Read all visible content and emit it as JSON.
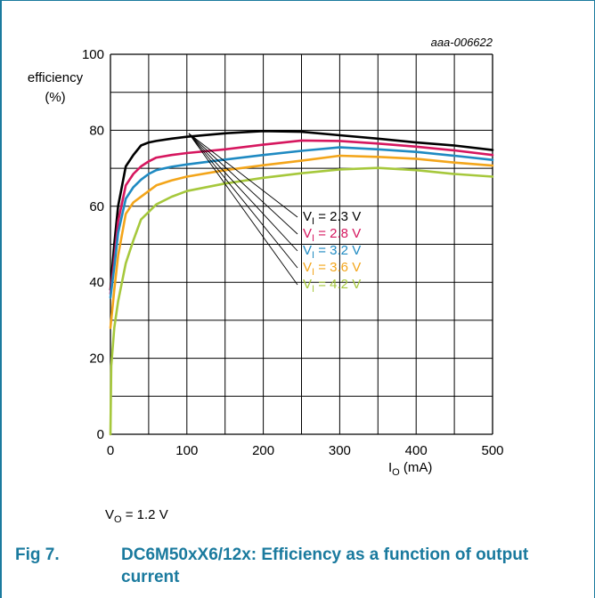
{
  "figure": {
    "number": "Fig 7.",
    "caption": "DC6M50xX6/12x: Efficiency as a function of output current",
    "code": "aaa-006622",
    "condition": {
      "main": "V",
      "sub": "O",
      "rest": " = 1.2 V"
    }
  },
  "chart_data": {
    "type": "line",
    "title": "",
    "ylabel": "efficiency (%)",
    "ylabel_lines": [
      "efficiency",
      "(%)"
    ],
    "xlabel": {
      "main": "I",
      "sub": "O",
      "rest": " (mA)"
    },
    "xlim": [
      0,
      500
    ],
    "ylim": [
      0,
      100
    ],
    "xticks": [
      0,
      100,
      200,
      300,
      400,
      500
    ],
    "yticks": [
      0,
      20,
      40,
      60,
      80,
      100
    ],
    "grid": true,
    "legend_position": "center-right, with leader lines",
    "series": [
      {
        "name": "VI = 2.3 V",
        "label": {
          "main": "V",
          "sub": "I",
          "rest": " =  2.3 V"
        },
        "color": "#000000",
        "x": [
          0,
          5,
          10,
          20,
          30,
          40,
          50,
          60,
          80,
          100,
          150,
          200,
          250,
          300,
          350,
          400,
          450,
          500
        ],
        "y": [
          38,
          50,
          60,
          70.5,
          73.5,
          76,
          76.8,
          77.2,
          77.8,
          78.3,
          79.2,
          79.8,
          79.6,
          78.7,
          77.8,
          76.8,
          76,
          74.8
        ]
      },
      {
        "name": "VI = 2.8 V",
        "label": {
          "main": "V",
          "sub": "I",
          "rest": " =  2.8 V"
        },
        "color": "#d6175f",
        "x": [
          0,
          5,
          10,
          20,
          30,
          40,
          50,
          60,
          80,
          100,
          150,
          200,
          250,
          300,
          350,
          400,
          450,
          500
        ],
        "y": [
          37,
          46,
          56,
          65.5,
          68.5,
          70.5,
          71.8,
          72.8,
          73.5,
          74,
          75,
          76.2,
          77.3,
          77.2,
          76.5,
          75.7,
          74.7,
          73.5
        ]
      },
      {
        "name": "VI = 3.2 V",
        "label": {
          "main": "V",
          "sub": "I",
          "rest": " =  3.2 V"
        },
        "color": "#1f8ac2",
        "x": [
          0,
          5,
          10,
          20,
          30,
          40,
          50,
          60,
          80,
          100,
          150,
          200,
          250,
          300,
          350,
          400,
          450,
          500
        ],
        "y": [
          36,
          44,
          53,
          62,
          65,
          67,
          68.5,
          69.5,
          70.4,
          71,
          72.3,
          73.5,
          74.6,
          75.5,
          75,
          74.3,
          73.3,
          72.2
        ]
      },
      {
        "name": "VI = 3.6 V",
        "label": {
          "main": "V",
          "sub": "I",
          "rest": " =  3.6 V"
        },
        "color": "#f3a51a",
        "x": [
          0,
          5,
          10,
          20,
          30,
          40,
          50,
          60,
          80,
          100,
          150,
          200,
          250,
          300,
          350,
          400,
          450,
          500
        ],
        "y": [
          28,
          38,
          47,
          58,
          61,
          62.5,
          64,
          65.5,
          66.8,
          67.8,
          69.5,
          70.8,
          72,
          73.3,
          73,
          72.5,
          71.5,
          70.7
        ]
      },
      {
        "name": "VI = 4.2 V",
        "label": {
          "main": "V",
          "sub": "I",
          "rest": " =  4.2 V"
        },
        "color": "#a6c83c",
        "x": [
          0,
          1,
          5,
          10,
          20,
          30,
          40,
          50,
          60,
          80,
          100,
          150,
          200,
          250,
          300,
          350,
          400,
          450,
          500
        ],
        "y": [
          0,
          18,
          28,
          35,
          45,
          51,
          56.5,
          58.5,
          60.5,
          62.5,
          64,
          66,
          67.5,
          68.7,
          69.7,
          70.1,
          69.5,
          68.5,
          67.8
        ]
      }
    ]
  }
}
